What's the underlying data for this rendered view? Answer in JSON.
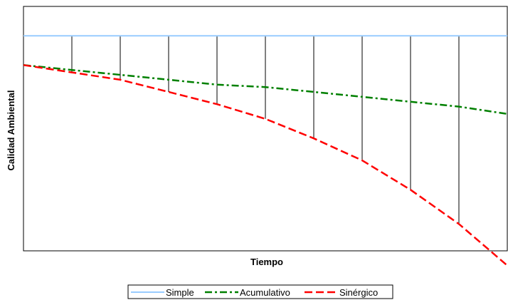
{
  "chart_data": {
    "type": "line",
    "title": "",
    "xlabel": "Tiempo",
    "ylabel": "Calidad Ambiental",
    "grid": false,
    "legend": "bottom",
    "x": [
      0,
      1,
      2,
      3,
      4,
      5,
      6,
      7,
      8,
      9,
      10
    ],
    "xlim": [
      0,
      10
    ],
    "ylim": [
      0,
      100
    ],
    "reference_line": {
      "y": 88
    },
    "series": [
      {
        "name": "Simple",
        "color": "#99ccff",
        "dash": "solid",
        "values": [
          88,
          88,
          88,
          88,
          88,
          88,
          88,
          88,
          88,
          88,
          88
        ]
      },
      {
        "name": "Acumulativo",
        "color": "#008000",
        "dash": "dashdot",
        "values": [
          76,
          74,
          72,
          70,
          68,
          67,
          65,
          63,
          61,
          59,
          56
        ]
      },
      {
        "name": "Sinérgico",
        "color": "#ff0000",
        "dash": "dashed",
        "values": [
          76,
          73,
          70,
          65,
          60,
          54,
          46,
          37,
          25,
          11,
          -6
        ]
      }
    ]
  }
}
